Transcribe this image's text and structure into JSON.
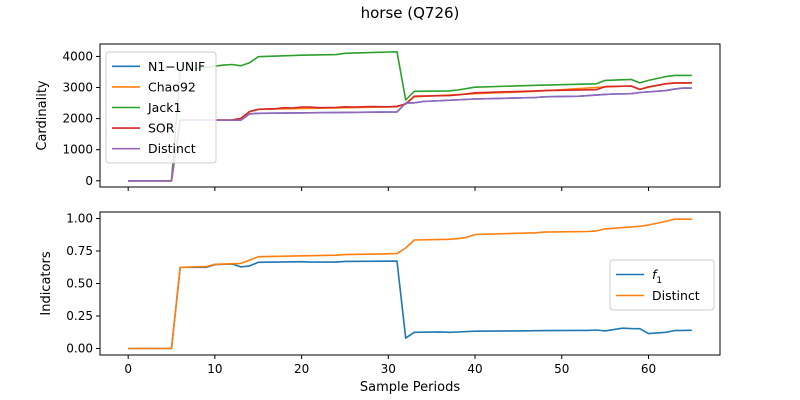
{
  "figure": {
    "title": "horse (Q726)"
  },
  "chart_data": [
    {
      "type": "line",
      "xlabel": "",
      "ylabel": "Cardinality",
      "xlim": [
        -3.25,
        68.25
      ],
      "ylim": [
        -200,
        4400
      ],
      "xticks": [
        0,
        10,
        20,
        30,
        40,
        50,
        60
      ],
      "xtick_labels_visible": false,
      "yticks": [
        0,
        1000,
        2000,
        3000,
        4000
      ],
      "ytick_labels": [
        "0",
        "1000",
        "2000",
        "3000",
        "4000"
      ],
      "legend_position": "upper-left",
      "series": [
        {
          "name": "N1−UNIF",
          "color": "#1f77b4",
          "x": [
            0,
            5,
            6,
            13,
            14,
            15,
            31,
            32,
            33,
            34,
            40,
            47,
            48,
            52,
            55,
            56,
            58,
            59,
            62,
            63,
            64,
            65
          ],
          "y": [
            0,
            0,
            1950,
            1950,
            2150,
            2170,
            2215,
            2500,
            2510,
            2550,
            2630,
            2680,
            2700,
            2720,
            2780,
            2790,
            2800,
            2840,
            2900,
            2950,
            2980,
            2980
          ]
        },
        {
          "name": "Chao92",
          "color": "#ff7f0e",
          "x": [
            0,
            5,
            6,
            12,
            13,
            14,
            15,
            31,
            32,
            33,
            40,
            47,
            55,
            58,
            59,
            60,
            62,
            63,
            65
          ],
          "y": [
            0,
            0,
            1950,
            1960,
            2000,
            2220,
            2300,
            2380,
            2480,
            2700,
            2800,
            2880,
            3020,
            3050,
            2940,
            3010,
            3120,
            3150,
            3150
          ]
        },
        {
          "name": "Jack1",
          "color": "#2ca02c",
          "x": [
            0,
            5,
            6,
            11,
            12,
            13,
            14,
            15,
            20,
            24,
            25,
            31,
            32,
            33,
            37,
            38,
            40,
            47,
            54,
            55,
            58,
            59,
            60,
            62,
            63,
            65
          ],
          "y": [
            0,
            0,
            3550,
            3720,
            3740,
            3700,
            3800,
            3990,
            4040,
            4060,
            4100,
            4150,
            2600,
            2880,
            2890,
            2920,
            3010,
            3070,
            3120,
            3230,
            3260,
            3150,
            3230,
            3350,
            3390,
            3390
          ]
        },
        {
          "name": "SOR",
          "color": "#d62728",
          "x": [
            0,
            5,
            6,
            12,
            13,
            14,
            15,
            17,
            18,
            19,
            20,
            21,
            22,
            24,
            25,
            26,
            27,
            28,
            30,
            31,
            32,
            33,
            37,
            38,
            40,
            47,
            48,
            54,
            55,
            58,
            59,
            60,
            62,
            63,
            65
          ],
          "y": [
            0,
            0,
            1950,
            1960,
            2010,
            2230,
            2300,
            2320,
            2350,
            2340,
            2370,
            2370,
            2350,
            2360,
            2380,
            2370,
            2380,
            2390,
            2380,
            2395,
            2470,
            2720,
            2740,
            2760,
            2830,
            2890,
            2900,
            2930,
            3030,
            3050,
            2940,
            3020,
            3120,
            3150,
            3150
          ]
        },
        {
          "name": "Distinct",
          "color": "#9467bd",
          "x": [
            0,
            5,
            6,
            13,
            14,
            15,
            31,
            32,
            33,
            34,
            40,
            47,
            48,
            52,
            55,
            56,
            58,
            59,
            62,
            63,
            64,
            65
          ],
          "y": [
            0,
            0,
            1950,
            1950,
            2150,
            2170,
            2215,
            2500,
            2510,
            2550,
            2630,
            2680,
            2700,
            2720,
            2780,
            2790,
            2800,
            2840,
            2900,
            2950,
            2980,
            2980
          ]
        }
      ]
    },
    {
      "type": "line",
      "xlabel": "Sample Periods",
      "ylabel": "Indicators",
      "xlim": [
        -3.25,
        68.25
      ],
      "ylim": [
        -0.05,
        1.05
      ],
      "xticks": [
        0,
        10,
        20,
        30,
        40,
        50,
        60
      ],
      "xtick_labels": [
        "0",
        "10",
        "20",
        "30",
        "40",
        "50",
        "60"
      ],
      "yticks": [
        0,
        0.25,
        0.5,
        0.75,
        1.0
      ],
      "ytick_labels": [
        "0.00",
        "0.25",
        "0.50",
        "0.75",
        "1.00"
      ],
      "legend_position": "center-right",
      "series": [
        {
          "name": "f1",
          "label_text": "f",
          "label_sub": "1",
          "color": "#1f77b4",
          "x": [
            0,
            5,
            6,
            9,
            10,
            12,
            13,
            14,
            15,
            20,
            21,
            24,
            25,
            31,
            32,
            33,
            36,
            37,
            38,
            40,
            45,
            47,
            48,
            52,
            53,
            54,
            55,
            57,
            58,
            59,
            60,
            62,
            63,
            65
          ],
          "y": [
            0,
            0,
            0.625,
            0.625,
            0.645,
            0.65,
            0.628,
            0.635,
            0.663,
            0.668,
            0.665,
            0.665,
            0.67,
            0.672,
            0.08,
            0.125,
            0.128,
            0.125,
            0.127,
            0.133,
            0.135,
            0.137,
            0.138,
            0.139,
            0.139,
            0.142,
            0.135,
            0.156,
            0.153,
            0.152,
            0.115,
            0.125,
            0.138,
            0.14
          ]
        },
        {
          "name": "Distinct",
          "color": "#ff7f0e",
          "x": [
            0,
            5,
            6,
            9,
            10,
            13,
            14,
            15,
            24,
            25,
            31,
            32,
            33,
            37,
            38,
            39,
            40,
            47,
            48,
            53,
            54,
            55,
            58,
            59,
            60,
            62,
            63,
            65
          ],
          "y": [
            0,
            0,
            0.625,
            0.63,
            0.648,
            0.655,
            0.68,
            0.706,
            0.718,
            0.722,
            0.73,
            0.773,
            0.835,
            0.84,
            0.845,
            0.855,
            0.877,
            0.89,
            0.895,
            0.9,
            0.905,
            0.92,
            0.935,
            0.94,
            0.95,
            0.978,
            0.995,
            0.995
          ]
        }
      ]
    }
  ]
}
